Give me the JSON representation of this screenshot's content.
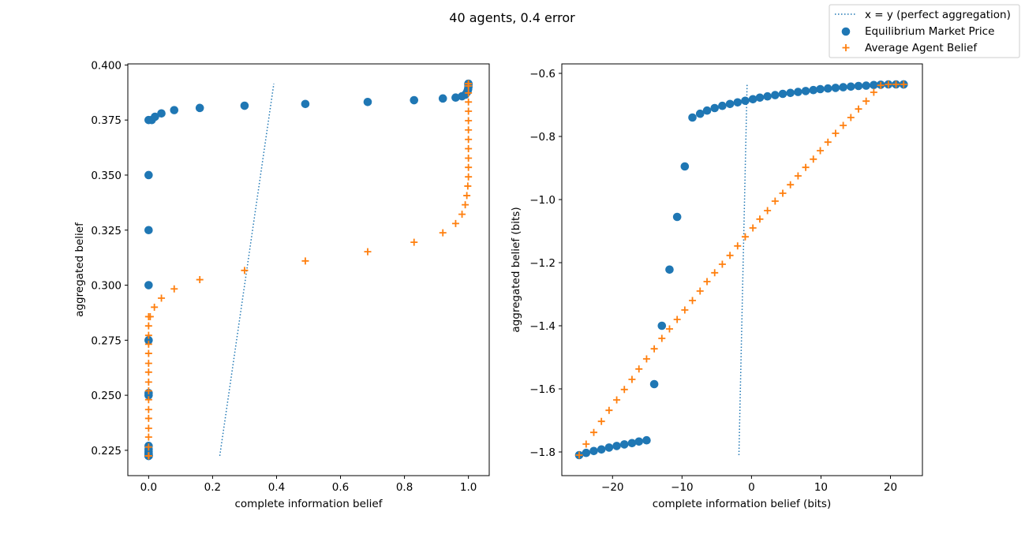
{
  "figure": {
    "title": "40 agents, 0.4 error"
  },
  "colors": {
    "line": "#1f77b4",
    "market": "#1f77b4",
    "agent": "#ff7f0e"
  },
  "legend": {
    "placement": "top-right",
    "entries": [
      {
        "label": "x = y (perfect aggregation)",
        "marker": "dotted-line",
        "color": "#1f77b4"
      },
      {
        "label": "Equilibrium Market Price",
        "marker": "circle",
        "color": "#1f77b4"
      },
      {
        "label": "Average Agent Belief",
        "marker": "plus",
        "color": "#ff7f0e"
      }
    ]
  },
  "chart_data": [
    {
      "type": "scatter",
      "xlabel": "complete information belief",
      "ylabel": "aggregated belief",
      "xlim": [
        -0.065,
        1.065
      ],
      "ylim": [
        0.2135,
        0.4005
      ],
      "xticks": [
        0.0,
        0.2,
        0.4,
        0.6,
        0.8,
        1.0
      ],
      "xtick_labels": [
        "0.0",
        "0.2",
        "0.4",
        "0.6",
        "0.8",
        "1.0"
      ],
      "yticks": [
        0.225,
        0.25,
        0.275,
        0.3,
        0.325,
        0.35,
        0.375,
        0.4
      ],
      "ytick_labels": [
        "0.225",
        "0.250",
        "0.275",
        "0.300",
        "0.325",
        "0.350",
        "0.375",
        "0.400"
      ],
      "grid": false,
      "series": [
        {
          "name": "x = y (perfect aggregation)",
          "kind": "line",
          "style": "dotted",
          "x": [
            0.2225,
            0.3915
          ],
          "y": [
            0.2225,
            0.3915
          ]
        },
        {
          "name": "Equilibrium Market Price",
          "kind": "scatter",
          "marker": "circle",
          "x": [
            0.0,
            0.0,
            0.0,
            0.0,
            0.0,
            0.0,
            0.0,
            0.0,
            0.0,
            0.0,
            0.0,
            0.0,
            0.0,
            0.0,
            0.0,
            0.0,
            0.0,
            0.0,
            0.0,
            0.0,
            0.01,
            0.02,
            0.04,
            0.08,
            0.16,
            0.3,
            0.49,
            0.685,
            0.83,
            0.92,
            0.96,
            0.98,
            0.99,
            0.995,
            0.998,
            0.999,
            1.0,
            1.0,
            1.0,
            1.0
          ],
          "y": [
            0.2225,
            0.2225,
            0.2228,
            0.223,
            0.2233,
            0.2238,
            0.2245,
            0.2255,
            0.227,
            0.25,
            0.251,
            0.275,
            0.3,
            0.325,
            0.35,
            0.375,
            0.2225,
            0.2225,
            0.2225,
            0.2225,
            0.375,
            0.3765,
            0.378,
            0.3795,
            0.3805,
            0.3815,
            0.3823,
            0.3832,
            0.384,
            0.3848,
            0.3852,
            0.3858,
            0.3865,
            0.3875,
            0.3885,
            0.389,
            0.39,
            0.391,
            0.3915,
            0.3915
          ]
        },
        {
          "name": "Average Agent Belief",
          "kind": "scatter",
          "marker": "plus",
          "x": [
            0.0,
            0.0,
            0.0,
            0.0,
            0.0,
            0.0,
            0.0,
            0.0,
            0.0,
            0.0,
            0.0,
            0.0,
            0.0,
            0.0,
            0.0,
            0.0,
            0.0,
            0.0,
            0.0,
            0.0,
            0.005,
            0.018,
            0.04,
            0.08,
            0.16,
            0.3,
            0.49,
            0.685,
            0.83,
            0.92,
            0.96,
            0.98,
            0.99,
            0.995,
            0.998,
            1.0,
            1.0,
            1.0,
            1.0,
            1.0,
            1.0,
            1.0,
            1.0,
            1.0,
            1.0,
            1.0,
            1.0,
            1.0
          ],
          "y": [
            0.2225,
            0.2265,
            0.231,
            0.235,
            0.2395,
            0.2435,
            0.248,
            0.252,
            0.256,
            0.2605,
            0.2645,
            0.269,
            0.2732,
            0.2772,
            0.2815,
            0.2857,
            0.2225,
            0.2225,
            0.2225,
            0.2225,
            0.2857,
            0.29,
            0.2941,
            0.2983,
            0.3025,
            0.3067,
            0.311,
            0.3152,
            0.3195,
            0.3238,
            0.328,
            0.3322,
            0.3365,
            0.3407,
            0.345,
            0.3492,
            0.3535,
            0.3577,
            0.362,
            0.3662,
            0.3705,
            0.3747,
            0.379,
            0.3832,
            0.3873,
            0.3905,
            0.3915,
            0.3915
          ]
        }
      ]
    },
    {
      "type": "scatter",
      "xlabel": "complete information belief (bits)",
      "ylabel": "aggregated belief (bits)",
      "xlim": [
        -27.3,
        24.6
      ],
      "ylim": [
        -1.875,
        -0.57
      ],
      "xticks": [
        -20,
        -10,
        0,
        10,
        20
      ],
      "xtick_labels": [
        "−20",
        "−10",
        "0",
        "10",
        "20"
      ],
      "yticks": [
        -1.8,
        -1.6,
        -1.4,
        -1.2,
        -1.0,
        -0.8,
        -0.6
      ],
      "ytick_labels": [
        "−1.8",
        "−1.6",
        "−1.4",
        "−1.2",
        "−1.0",
        "−0.8",
        "−0.6"
      ],
      "grid": false,
      "series": [
        {
          "name": "x = y (perfect aggregation)",
          "kind": "line",
          "style": "dotted",
          "x": [
            -1.81,
            -0.635
          ],
          "y": [
            -1.81,
            -0.635
          ]
        },
        {
          "name": "Equilibrium Market Price",
          "kind": "scatter",
          "marker": "circle",
          "x": [
            -24.8,
            -23.8,
            -22.7,
            -21.6,
            -20.5,
            -19.4,
            -18.3,
            -17.2,
            -16.2,
            -15.1,
            -14.0,
            -12.9,
            -11.8,
            -10.7,
            -9.6,
            -8.5,
            -7.4,
            -6.4,
            -5.3,
            -4.2,
            -3.1,
            -2.0,
            -0.9,
            0.2,
            1.2,
            2.3,
            3.4,
            4.5,
            5.6,
            6.7,
            7.8,
            8.9,
            9.9,
            11.0,
            12.1,
            13.2,
            14.3,
            15.4,
            16.5,
            17.6,
            18.6,
            19.7,
            20.8,
            21.9,
            21.9
          ],
          "y": [
            -1.81,
            -1.803,
            -1.797,
            -1.792,
            -1.786,
            -1.781,
            -1.776,
            -1.772,
            -1.767,
            -1.763,
            -1.585,
            -1.4,
            -1.222,
            -1.055,
            -0.895,
            -0.74,
            -0.728,
            -0.718,
            -0.71,
            -0.703,
            -0.697,
            -0.692,
            -0.687,
            -0.682,
            -0.677,
            -0.673,
            -0.669,
            -0.665,
            -0.662,
            -0.659,
            -0.656,
            -0.653,
            -0.65,
            -0.648,
            -0.646,
            -0.644,
            -0.642,
            -0.64,
            -0.639,
            -0.637,
            -0.636,
            -0.635,
            -0.635,
            -0.635,
            -0.635
          ]
        },
        {
          "name": "Average Agent Belief",
          "kind": "scatter",
          "marker": "plus",
          "x": [
            -24.8,
            -23.8,
            -22.7,
            -21.6,
            -20.5,
            -19.4,
            -18.3,
            -17.2,
            -16.2,
            -15.1,
            -14.0,
            -12.9,
            -11.8,
            -10.7,
            -9.6,
            -8.5,
            -7.4,
            -6.4,
            -5.3,
            -4.2,
            -3.1,
            -2.0,
            -0.9,
            0.2,
            1.2,
            2.3,
            3.4,
            4.5,
            5.6,
            6.7,
            7.8,
            8.9,
            9.9,
            11.0,
            12.1,
            13.2,
            14.3,
            15.4,
            16.5,
            17.6,
            18.6,
            19.7,
            20.8,
            21.9
          ],
          "y": [
            -1.81,
            -1.775,
            -1.738,
            -1.703,
            -1.668,
            -1.635,
            -1.602,
            -1.57,
            -1.537,
            -1.505,
            -1.473,
            -1.44,
            -1.41,
            -1.38,
            -1.35,
            -1.32,
            -1.29,
            -1.26,
            -1.232,
            -1.205,
            -1.177,
            -1.147,
            -1.118,
            -1.09,
            -1.062,
            -1.035,
            -1.005,
            -0.98,
            -0.953,
            -0.925,
            -0.898,
            -0.872,
            -0.845,
            -0.818,
            -0.79,
            -0.765,
            -0.74,
            -0.713,
            -0.688,
            -0.66,
            -0.638,
            -0.635,
            -0.635,
            -0.635
          ]
        }
      ]
    }
  ]
}
